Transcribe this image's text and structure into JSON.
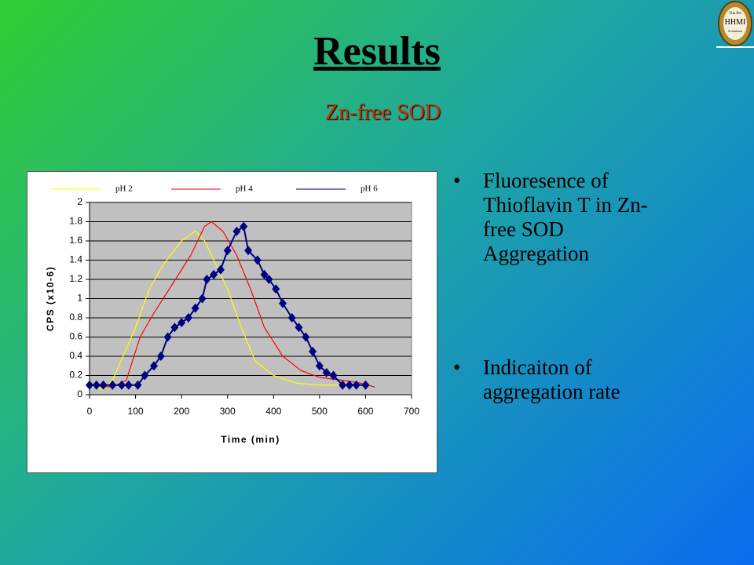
{
  "slide": {
    "title": "Results",
    "subtitle": "Zn-free SOD",
    "bullets": [
      "Fluoresence of Thioflavin T in Zn-free SOD Aggregation",
      "Indicaiton of aggregation rate"
    ],
    "logo": [
      "Vita Per",
      "HHMI",
      "Scientiam"
    ]
  },
  "chart_data": {
    "type": "line",
    "x_label": "Time (min)",
    "y_label": "CPS (x10-6)",
    "xlim": [
      0,
      700
    ],
    "xticks": [
      0,
      100,
      200,
      300,
      400,
      500,
      600,
      700
    ],
    "ylim": [
      0,
      2
    ],
    "yticks": [
      0,
      0.2,
      0.4,
      0.6,
      0.8,
      1,
      1.2,
      1.4,
      1.6,
      1.8,
      2
    ],
    "grid": true,
    "legend": "top",
    "series": [
      {
        "name": "pH 2",
        "color": "#ffff00",
        "marker": "none",
        "x": [
          0,
          30,
          50,
          100,
          130,
          160,
          200,
          230,
          250,
          280,
          300,
          330,
          360,
          400,
          450,
          500,
          560,
          600
        ],
        "values": [
          0.1,
          0.05,
          0.15,
          0.7,
          1.1,
          1.35,
          1.6,
          1.7,
          1.6,
          1.3,
          1.1,
          0.7,
          0.35,
          0.2,
          0.12,
          0.1,
          0.1,
          0.1
        ]
      },
      {
        "name": "pH 4",
        "color": "#ff0000",
        "marker": "none",
        "x": [
          0,
          50,
          80,
          110,
          140,
          180,
          220,
          250,
          265,
          290,
          320,
          350,
          380,
          420,
          460,
          500,
          550,
          590,
          620
        ],
        "values": [
          0.1,
          0.08,
          0.15,
          0.6,
          0.85,
          1.15,
          1.45,
          1.75,
          1.8,
          1.7,
          1.45,
          1.1,
          0.7,
          0.4,
          0.25,
          0.18,
          0.15,
          0.12,
          0.08
        ]
      },
      {
        "name": "pH 6",
        "color": "#000080",
        "marker": "diamond",
        "x": [
          0,
          15,
          30,
          50,
          70,
          85,
          105,
          120,
          140,
          155,
          170,
          185,
          200,
          215,
          230,
          245,
          255,
          270,
          285,
          300,
          320,
          335,
          345,
          365,
          380,
          390,
          405,
          420,
          440,
          455,
          470,
          485,
          500,
          515,
          530,
          550,
          565,
          580,
          600
        ],
        "values": [
          0.1,
          0.1,
          0.1,
          0.1,
          0.1,
          0.1,
          0.1,
          0.2,
          0.3,
          0.4,
          0.6,
          0.7,
          0.75,
          0.8,
          0.9,
          1,
          1.2,
          1.25,
          1.3,
          1.5,
          1.7,
          1.75,
          1.5,
          1.4,
          1.25,
          1.2,
          1.1,
          0.95,
          0.8,
          0.7,
          0.6,
          0.45,
          0.3,
          0.23,
          0.2,
          0.1,
          0.1,
          0.1,
          0.1
        ]
      }
    ]
  }
}
